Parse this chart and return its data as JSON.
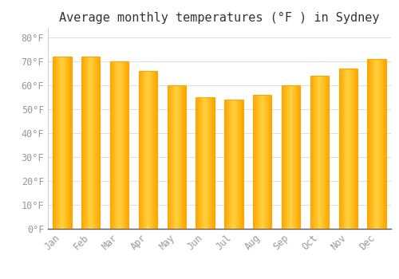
{
  "title": "Average monthly temperatures (°F ) in Sydney",
  "months": [
    "Jan",
    "Feb",
    "Mar",
    "Apr",
    "May",
    "Jun",
    "Jul",
    "Aug",
    "Sep",
    "Oct",
    "Nov",
    "Dec"
  ],
  "values": [
    72,
    72,
    70,
    66,
    60,
    55,
    54,
    56,
    60,
    64,
    67,
    71
  ],
  "bar_color_left": "#FFA500",
  "bar_color_mid": "#FFD050",
  "bar_color_right": "#FFA500",
  "background_color": "#FFFFFF",
  "plot_area_color": "#FFFFFF",
  "grid_color": "#DDDDDD",
  "yticks": [
    0,
    10,
    20,
    30,
    40,
    50,
    60,
    70,
    80
  ],
  "ytick_labels": [
    "0°F",
    "10°F",
    "20°F",
    "30°F",
    "40°F",
    "50°F",
    "60°F",
    "70°F",
    "80°F"
  ],
  "ylim": [
    0,
    84
  ],
  "title_fontsize": 11,
  "tick_fontsize": 8.5,
  "tick_color": "#999999",
  "title_color": "#333333",
  "spine_color": "#CCCCCC",
  "font_family": "monospace",
  "bar_width": 0.65
}
